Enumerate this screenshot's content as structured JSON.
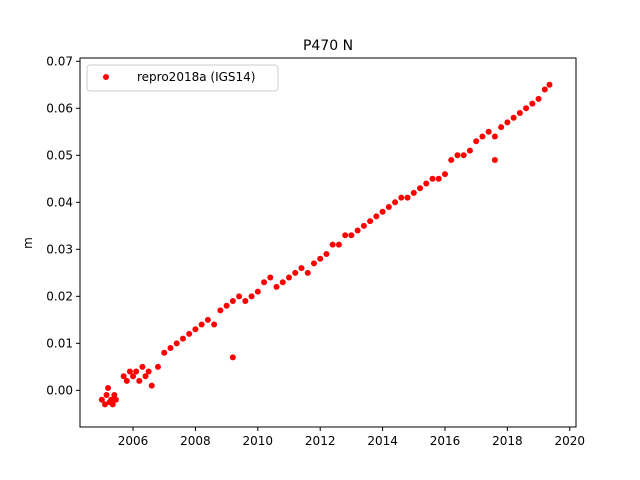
{
  "chart_data": {
    "type": "scatter",
    "title": "P470 N",
    "xlabel": "",
    "ylabel": "m",
    "xlim": [
      2004.3,
      2020.2
    ],
    "ylim": [
      -0.0078,
      0.0707
    ],
    "x_ticks": [
      2006,
      2008,
      2010,
      2012,
      2014,
      2016,
      2018,
      2020
    ],
    "x_tick_labels": [
      "2006",
      "2008",
      "2010",
      "2012",
      "2014",
      "2016",
      "2018",
      "2020"
    ],
    "y_ticks": [
      0.0,
      0.01,
      0.02,
      0.03,
      0.04,
      0.05,
      0.06,
      0.07
    ],
    "y_tick_labels": [
      "0.00",
      "0.01",
      "0.02",
      "0.03",
      "0.04",
      "0.05",
      "0.06",
      "0.07"
    ],
    "grid": false,
    "legend": {
      "placement": "top-left",
      "entries": [
        "repro2018a (IGS14)"
      ]
    },
    "series": [
      {
        "name": "repro2018a (IGS14)",
        "color": "#ff0000",
        "marker": "circle",
        "points": [
          [
            2005.0,
            -0.002
          ],
          [
            2005.1,
            -0.003
          ],
          [
            2005.15,
            -0.001
          ],
          [
            2005.2,
            0.0005
          ],
          [
            2005.25,
            -0.0025
          ],
          [
            2005.3,
            -0.002
          ],
          [
            2005.35,
            -0.003
          ],
          [
            2005.4,
            -0.001
          ],
          [
            2005.45,
            -0.002
          ],
          [
            2005.7,
            0.003
          ],
          [
            2005.8,
            0.002
          ],
          [
            2005.9,
            0.004
          ],
          [
            2006.0,
            0.003
          ],
          [
            2006.1,
            0.004
          ],
          [
            2006.2,
            0.002
          ],
          [
            2006.3,
            0.005
          ],
          [
            2006.4,
            0.003
          ],
          [
            2006.5,
            0.004
          ],
          [
            2006.6,
            0.001
          ],
          [
            2006.8,
            0.005
          ],
          [
            2007.0,
            0.008
          ],
          [
            2007.2,
            0.009
          ],
          [
            2007.4,
            0.01
          ],
          [
            2007.6,
            0.011
          ],
          [
            2007.8,
            0.012
          ],
          [
            2008.0,
            0.013
          ],
          [
            2008.2,
            0.014
          ],
          [
            2008.4,
            0.015
          ],
          [
            2008.6,
            0.014
          ],
          [
            2008.8,
            0.017
          ],
          [
            2009.0,
            0.018
          ],
          [
            2009.2,
            0.019
          ],
          [
            2009.4,
            0.02
          ],
          [
            2009.6,
            0.019
          ],
          [
            2009.8,
            0.02
          ],
          [
            2010.0,
            0.021
          ],
          [
            2010.2,
            0.023
          ],
          [
            2010.4,
            0.024
          ],
          [
            2010.6,
            0.022
          ],
          [
            2010.8,
            0.023
          ],
          [
            2011.0,
            0.024
          ],
          [
            2011.2,
            0.025
          ],
          [
            2011.4,
            0.026
          ],
          [
            2011.6,
            0.025
          ],
          [
            2011.8,
            0.027
          ],
          [
            2012.0,
            0.028
          ],
          [
            2012.2,
            0.029
          ],
          [
            2012.4,
            0.031
          ],
          [
            2012.6,
            0.031
          ],
          [
            2012.8,
            0.033
          ],
          [
            2013.0,
            0.033
          ],
          [
            2013.2,
            0.034
          ],
          [
            2013.4,
            0.035
          ],
          [
            2013.6,
            0.036
          ],
          [
            2013.8,
            0.037
          ],
          [
            2014.0,
            0.038
          ],
          [
            2014.2,
            0.039
          ],
          [
            2014.4,
            0.04
          ],
          [
            2014.6,
            0.041
          ],
          [
            2014.8,
            0.041
          ],
          [
            2015.0,
            0.042
          ],
          [
            2015.2,
            0.043
          ],
          [
            2015.4,
            0.044
          ],
          [
            2015.6,
            0.045
          ],
          [
            2015.8,
            0.045
          ],
          [
            2016.0,
            0.046
          ],
          [
            2016.2,
            0.049
          ],
          [
            2016.4,
            0.05
          ],
          [
            2016.6,
            0.05
          ],
          [
            2016.8,
            0.051
          ],
          [
            2017.0,
            0.053
          ],
          [
            2017.2,
            0.054
          ],
          [
            2017.4,
            0.055
          ],
          [
            2017.6,
            0.054
          ],
          [
            2017.8,
            0.056
          ],
          [
            2018.0,
            0.057
          ],
          [
            2018.2,
            0.058
          ],
          [
            2018.4,
            0.059
          ],
          [
            2018.6,
            0.06
          ],
          [
            2018.8,
            0.061
          ],
          [
            2019.0,
            0.062
          ],
          [
            2019.2,
            0.064
          ],
          [
            2019.35,
            0.065
          ],
          [
            2009.2,
            0.007
          ],
          [
            2017.6,
            0.049
          ]
        ]
      }
    ]
  }
}
